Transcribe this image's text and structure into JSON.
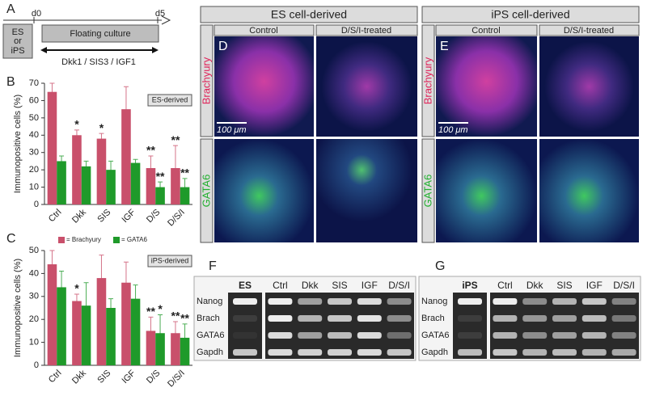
{
  "panel_labels": [
    "A",
    "B",
    "C",
    "D",
    "E",
    "F",
    "G"
  ],
  "timeline": {
    "start": "d0",
    "end": "d5",
    "source": "ES",
    "source_or": "or",
    "source_alt": "iPS",
    "step": "Floating culture",
    "treatment": "Dkk1 / SIS3 / IGF1"
  },
  "chart_data": [
    {
      "type": "bar",
      "ylabel": "Immunopositive cells (%)",
      "tag": "ES-derived",
      "categories": [
        "Ctrl",
        "Dkk",
        "SIS",
        "IGF",
        "D/S",
        "D/S/I"
      ],
      "series": [
        {
          "name": "= Brachyury",
          "color": "#c9506b",
          "values": [
            65,
            40,
            38,
            55,
            21,
            21
          ],
          "errors": [
            5,
            3,
            3,
            13,
            7,
            13
          ],
          "annotations": [
            null,
            "*",
            "*",
            null,
            "**",
            "**"
          ]
        },
        {
          "name": "= GATA6",
          "color": "#1f9a2a",
          "values": [
            25,
            22,
            20,
            24,
            10,
            10
          ],
          "errors": [
            3,
            3,
            5,
            2,
            3,
            5
          ],
          "annotations": [
            null,
            null,
            null,
            null,
            "**",
            "**"
          ]
        }
      ],
      "ylim": [
        0,
        70
      ],
      "yticks": [
        0,
        10,
        20,
        30,
        40,
        50,
        60,
        70
      ]
    },
    {
      "type": "bar",
      "ylabel": "Immunopositive cells (%)",
      "tag": "iPS-derived",
      "categories": [
        "Ctrl",
        "Dkk",
        "SIS",
        "IGF",
        "D/S",
        "D/S/I"
      ],
      "series": [
        {
          "color": "#c9506b",
          "values": [
            44,
            28,
            38,
            36,
            15,
            14
          ],
          "errors": [
            6,
            3,
            10,
            9,
            6,
            5
          ],
          "annotations": [
            null,
            "*",
            null,
            null,
            "**",
            "**"
          ]
        },
        {
          "color": "#1f9a2a",
          "values": [
            34,
            26,
            25,
            29,
            14,
            12
          ],
          "errors": [
            7,
            10,
            4,
            6,
            8,
            6
          ],
          "annotations": [
            null,
            null,
            null,
            null,
            "*",
            "**"
          ]
        }
      ],
      "ylim": [
        0,
        50
      ],
      "yticks": [
        0,
        10,
        20,
        30,
        40,
        50
      ]
    }
  ],
  "images": {
    "groups": [
      "ES cell-derived",
      "iPS cell-derived"
    ],
    "conditions": [
      "Control",
      "D/S/I-treated"
    ],
    "markers": [
      "Brachyury",
      "GATA6"
    ],
    "scale_bar": "100 μm"
  },
  "gels": [
    {
      "lanes": [
        "ES",
        "Ctrl",
        "Dkk",
        "SIS",
        "IGF",
        "D/S/I"
      ],
      "genes": [
        "Nanog",
        "Brach",
        "GATA6",
        "Gapdh"
      ]
    },
    {
      "lanes": [
        "iPS",
        "Ctrl",
        "Dkk",
        "SIS",
        "IGF",
        "D/S/I"
      ],
      "genes": [
        "Nanog",
        "Brach",
        "GATA6",
        "Gapdh"
      ]
    }
  ]
}
